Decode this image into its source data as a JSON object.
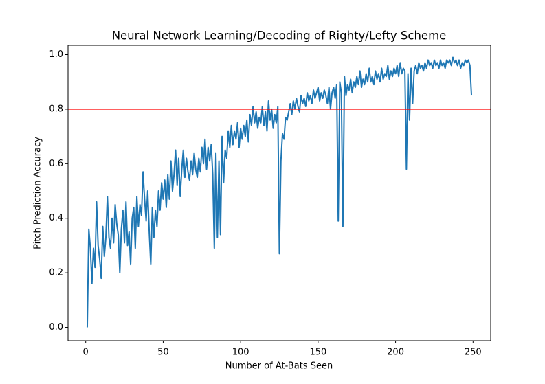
{
  "chart_data": {
    "type": "line",
    "title": "Neural Network Learning/Decoding of Righty/Lefty Scheme",
    "xlabel": "Number of At-Bats Seen",
    "ylabel": "Pitch Prediction Accuracy",
    "color": "#1f77b4",
    "hline": {
      "value": 0.8,
      "color": "#ff0000"
    },
    "xlim": [
      -11.4,
      261.4
    ],
    "ylim": [
      -0.049,
      1.034
    ],
    "xticks": [
      0,
      50,
      100,
      150,
      200,
      250
    ],
    "yticks": [
      {
        "value": 0,
        "label": "0.0"
      },
      0.2,
      0.4,
      0.6,
      0.8,
      {
        "value": 1,
        "label": "1.0"
      }
    ],
    "x": [
      1,
      2,
      3,
      4,
      5,
      6,
      7,
      8,
      9,
      10,
      11,
      12,
      13,
      14,
      15,
      16,
      17,
      18,
      19,
      20,
      21,
      22,
      23,
      24,
      25,
      26,
      27,
      28,
      29,
      30,
      31,
      32,
      33,
      34,
      35,
      36,
      37,
      38,
      39,
      40,
      41,
      42,
      43,
      44,
      45,
      46,
      47,
      48,
      49,
      50,
      51,
      52,
      53,
      54,
      55,
      56,
      57,
      58,
      59,
      60,
      61,
      62,
      63,
      64,
      65,
      66,
      67,
      68,
      69,
      70,
      71,
      72,
      73,
      74,
      75,
      76,
      77,
      78,
      79,
      80,
      81,
      82,
      83,
      84,
      85,
      86,
      87,
      88,
      89,
      90,
      91,
      92,
      93,
      94,
      95,
      96,
      97,
      98,
      99,
      100,
      101,
      102,
      103,
      104,
      105,
      106,
      107,
      108,
      109,
      110,
      111,
      112,
      113,
      114,
      115,
      116,
      117,
      118,
      119,
      120,
      121,
      122,
      123,
      124,
      125,
      126,
      127,
      128,
      129,
      130,
      131,
      132,
      133,
      134,
      135,
      136,
      137,
      138,
      139,
      140,
      141,
      142,
      143,
      144,
      145,
      146,
      147,
      148,
      149,
      150,
      151,
      152,
      153,
      154,
      155,
      156,
      157,
      158,
      159,
      160,
      161,
      162,
      163,
      164,
      165,
      166,
      167,
      168,
      169,
      170,
      171,
      172,
      173,
      174,
      175,
      176,
      177,
      178,
      179,
      180,
      181,
      182,
      183,
      184,
      185,
      186,
      187,
      188,
      189,
      190,
      191,
      192,
      193,
      194,
      195,
      196,
      197,
      198,
      199,
      200,
      201,
      202,
      203,
      204,
      205,
      206,
      207,
      208,
      209,
      210,
      211,
      212,
      213,
      214,
      215,
      216,
      217,
      218,
      219,
      220,
      221,
      222,
      223,
      224,
      225,
      226,
      227,
      228,
      229,
      230,
      231,
      232,
      233,
      234,
      235,
      236,
      237,
      238,
      239,
      240,
      241,
      242,
      243,
      244,
      245,
      246,
      247,
      248,
      249
    ],
    "values": [
      0.0,
      0.36,
      0.29,
      0.16,
      0.29,
      0.22,
      0.46,
      0.3,
      0.25,
      0.18,
      0.37,
      0.26,
      0.33,
      0.48,
      0.33,
      0.29,
      0.4,
      0.31,
      0.45,
      0.38,
      0.34,
      0.2,
      0.36,
      0.43,
      0.31,
      0.46,
      0.3,
      0.35,
      0.23,
      0.4,
      0.44,
      0.29,
      0.48,
      0.37,
      0.45,
      0.41,
      0.57,
      0.47,
      0.39,
      0.5,
      0.35,
      0.23,
      0.44,
      0.33,
      0.43,
      0.37,
      0.5,
      0.43,
      0.53,
      0.47,
      0.54,
      0.44,
      0.56,
      0.47,
      0.61,
      0.5,
      0.56,
      0.65,
      0.52,
      0.62,
      0.48,
      0.58,
      0.65,
      0.55,
      0.62,
      0.57,
      0.54,
      0.61,
      0.56,
      0.64,
      0.58,
      0.55,
      0.62,
      0.57,
      0.66,
      0.6,
      0.69,
      0.58,
      0.66,
      0.61,
      0.67,
      0.56,
      0.29,
      0.64,
      0.33,
      0.61,
      0.34,
      0.7,
      0.53,
      0.65,
      0.62,
      0.72,
      0.66,
      0.74,
      0.67,
      0.72,
      0.69,
      0.75,
      0.66,
      0.73,
      0.69,
      0.74,
      0.7,
      0.76,
      0.68,
      0.78,
      0.74,
      0.81,
      0.75,
      0.79,
      0.73,
      0.77,
      0.75,
      0.81,
      0.74,
      0.79,
      0.72,
      0.83,
      0.76,
      0.8,
      0.73,
      0.78,
      0.75,
      0.81,
      0.27,
      0.61,
      0.71,
      0.69,
      0.77,
      0.76,
      0.79,
      0.82,
      0.78,
      0.83,
      0.8,
      0.84,
      0.81,
      0.79,
      0.85,
      0.82,
      0.84,
      0.81,
      0.86,
      0.83,
      0.85,
      0.82,
      0.87,
      0.84,
      0.86,
      0.88,
      0.83,
      0.86,
      0.84,
      0.87,
      0.85,
      0.82,
      0.88,
      0.8,
      0.86,
      0.88,
      0.84,
      0.89,
      0.39,
      0.9,
      0.86,
      0.37,
      0.92,
      0.85,
      0.89,
      0.87,
      0.91,
      0.86,
      0.9,
      0.88,
      0.92,
      0.89,
      0.94,
      0.88,
      0.91,
      0.89,
      0.93,
      0.9,
      0.95,
      0.9,
      0.92,
      0.89,
      0.94,
      0.91,
      0.93,
      0.9,
      0.95,
      0.91,
      0.93,
      0.92,
      0.96,
      0.91,
      0.94,
      0.92,
      0.95,
      0.93,
      0.96,
      0.92,
      0.97,
      0.93,
      0.95,
      0.94,
      0.58,
      0.93,
      0.76,
      0.95,
      0.82,
      0.94,
      0.96,
      0.93,
      0.97,
      0.95,
      0.96,
      0.94,
      0.97,
      0.95,
      0.98,
      0.96,
      0.97,
      0.95,
      0.98,
      0.96,
      0.97,
      0.95,
      0.98,
      0.96,
      0.97,
      0.95,
      0.98,
      0.97,
      0.98,
      0.96,
      0.99,
      0.97,
      0.98,
      0.96,
      0.98,
      0.95,
      0.97,
      0.96,
      0.98,
      0.97,
      0.98,
      0.96,
      0.85
    ]
  }
}
